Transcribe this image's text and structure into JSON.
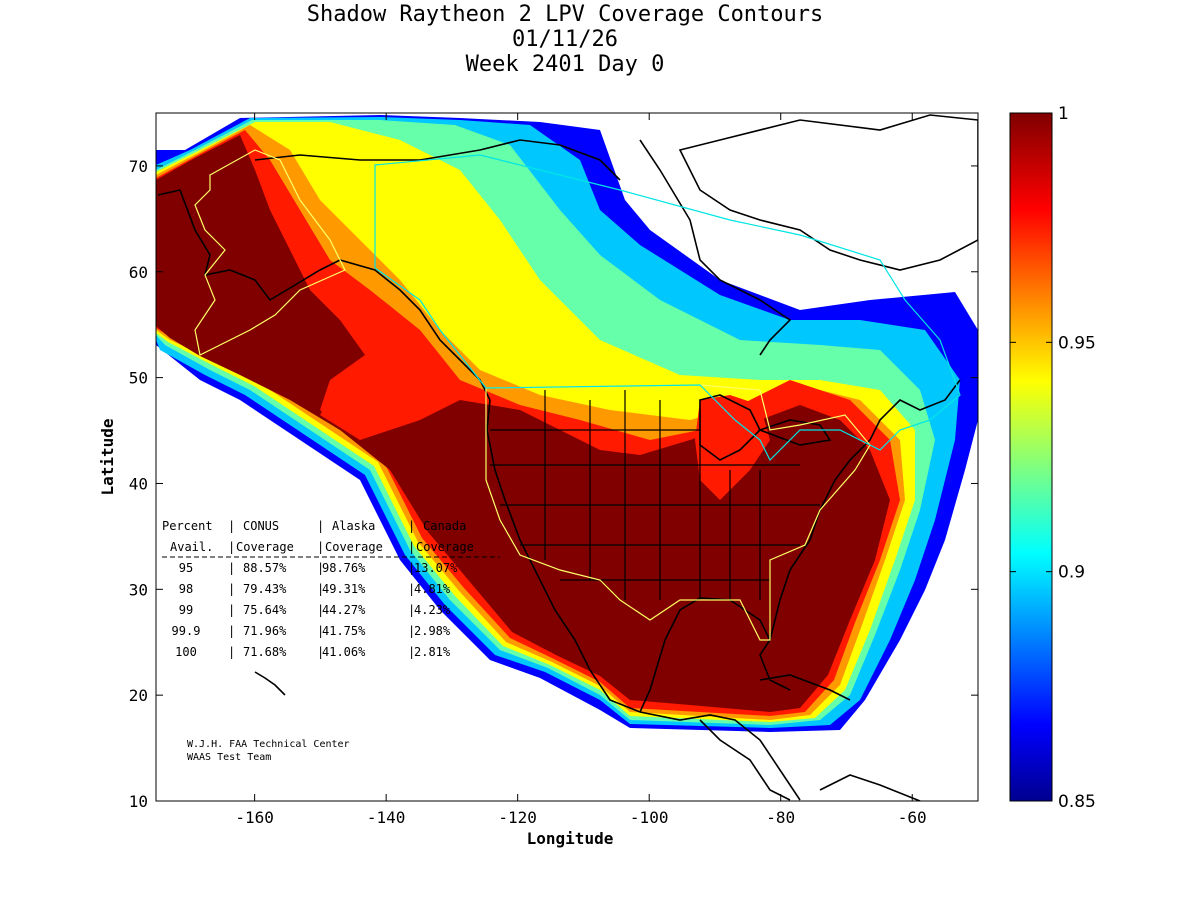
{
  "titles": {
    "line1": "Shadow Raytheon 2 LPV Coverage Contours",
    "line2": "01/11/26",
    "line3": "Week 2401 Day 0"
  },
  "axes": {
    "xlabel": "Longitude",
    "ylabel": "Latitude",
    "x_ticks": [
      "-160",
      "-140",
      "-120",
      "-100",
      "-80",
      "-60"
    ],
    "y_ticks": [
      "10",
      "20",
      "30",
      "40",
      "50",
      "60",
      "70"
    ],
    "x_range": [
      -175,
      -50
    ],
    "y_range": [
      10,
      75
    ]
  },
  "colorbar": {
    "ticks": [
      "1",
      "0.95",
      "0.9",
      "0.85"
    ],
    "range": [
      0.85,
      1.0
    ],
    "colormap": "jet"
  },
  "stats_table": {
    "header1": [
      "Percent",
      "CONUS",
      "Alaska",
      "Canada"
    ],
    "header2": [
      "Avail.",
      "Coverage",
      "Coverage",
      "Coverage"
    ],
    "rows": [
      [
        "95",
        "88.57%",
        "98.76%",
        "13.07%"
      ],
      [
        "98",
        "79.43%",
        "49.31%",
        "4.81%"
      ],
      [
        "99",
        "75.64%",
        "44.27%",
        "4.23%"
      ],
      [
        "99.9",
        "71.96%",
        "41.75%",
        "2.98%"
      ],
      [
        "100",
        "71.68%",
        "41.06%",
        "2.81%"
      ]
    ]
  },
  "credits": {
    "line1": "W.J.H. FAA Technical Center",
    "line2": "WAAS Test Team"
  },
  "colors": {
    "darkred": "#800000",
    "red": "#ff0000",
    "orange": "#ff8000",
    "yellow": "#ffff00",
    "cyan": "#00ffff",
    "blue": "#0000ff",
    "navy": "#00008f",
    "service_area": "#ffff66",
    "canada_boundary": "#00e5e5"
  }
}
